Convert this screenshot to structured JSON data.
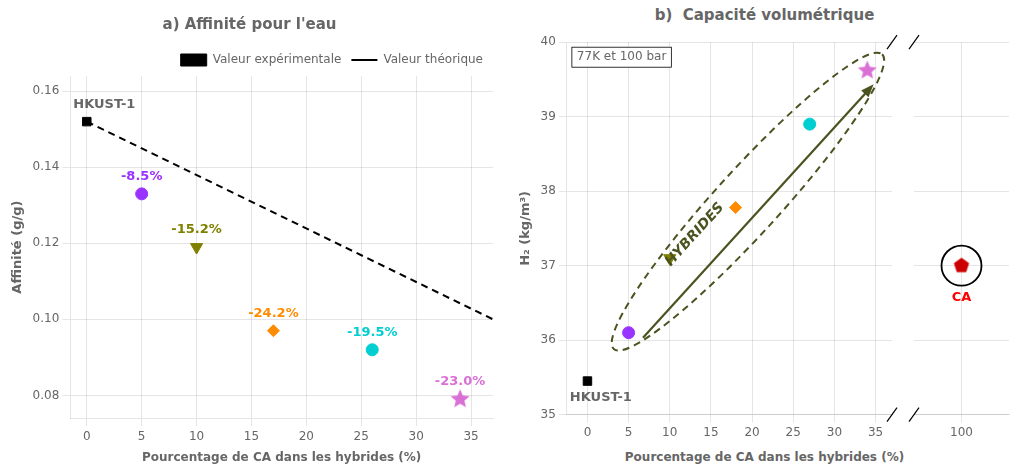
{
  "chart_data": [
    {
      "type": "scatter",
      "title": "a) Affinité pour l'eau",
      "xlabel": "Pourcentage de CA dans les hybrides (%)",
      "ylabel": "Affinité (g/g)",
      "xlim": [
        -1.5,
        37
      ],
      "xticks": [
        0,
        5,
        10,
        15,
        20,
        25,
        30,
        35
      ],
      "ylim": [
        0.074,
        0.164
      ],
      "yticks": [
        0.08,
        {
          "value": 0.1,
          "label": "0.10"
        },
        0.12,
        0.14,
        0.16
      ],
      "grid": true,
      "legend": "upper right",
      "series": [
        {
          "name": "Valeur théorique",
          "type": "line",
          "line_style": "dashed",
          "color": "#000000",
          "x": [
            0,
            37
          ],
          "values": [
            0.152,
            0.1
          ]
        },
        {
          "name": "Valeur expérimentale",
          "type": "scatter",
          "marker": "square",
          "color": "#000000",
          "x": [
            0
          ],
          "values": [
            0.152
          ]
        },
        {
          "type": "scatter",
          "marker": "circle",
          "color": "#9933FF",
          "x": [
            5
          ],
          "values": [
            0.133
          ]
        },
        {
          "type": "scatter",
          "marker": "triangle_down",
          "color": "#808000",
          "x": [
            10
          ],
          "values": [
            0.119
          ]
        },
        {
          "type": "scatter",
          "marker": "diamond",
          "color": "#FF8C00",
          "x": [
            17
          ],
          "values": [
            0.097
          ]
        },
        {
          "type": "scatter",
          "marker": "circle",
          "color": "#00CED1",
          "x": [
            26
          ],
          "values": [
            0.092
          ]
        },
        {
          "type": "scatter",
          "marker": "star",
          "color": "#DA70D6",
          "x": [
            34
          ],
          "values": [
            0.079
          ]
        }
      ],
      "annotations": [
        {
          "text": "HKUST-1",
          "x": 0,
          "y": 0.152
        },
        {
          "text": "-8.5%",
          "x": 5,
          "y": 0.133,
          "color": "#9933FF"
        },
        {
          "text": "-15.2%",
          "x": 10,
          "y": 0.119,
          "color": "#808000"
        },
        {
          "text": "-24.2%",
          "x": 17,
          "y": 0.097,
          "color": "#FF8C00"
        },
        {
          "text": "-19.5%",
          "x": 26,
          "y": 0.092,
          "color": "#00CED1"
        },
        {
          "text": "-23.0%",
          "x": 34,
          "y": 0.079,
          "color": "#DA70D6"
        }
      ]
    },
    {
      "type": "scatter",
      "title": "b)  Capacité volumétrique",
      "xlabel": "Pourcentage de CA dans les hybrides (%)",
      "ylabel": "H₂ (kg/m³)",
      "xlim": [
        -2.5,
        37
      ],
      "xticks": [
        0,
        5,
        10,
        15,
        20,
        25,
        30,
        35
      ],
      "ylim": [
        35.0,
        40.0
      ],
      "yticks": [
        35,
        36,
        37,
        38,
        39,
        40
      ],
      "grid": true,
      "series": [
        {
          "type": "scatter",
          "marker": "square",
          "color": "#000000",
          "x": [
            0
          ],
          "values": [
            35.45
          ]
        },
        {
          "type": "scatter",
          "marker": "circle",
          "color": "#9933FF",
          "x": [
            5
          ],
          "values": [
            36.1
          ]
        },
        {
          "type": "scatter",
          "marker": "triangle_down",
          "color": "#808000",
          "x": [
            10
          ],
          "values": [
            37.1
          ]
        },
        {
          "type": "scatter",
          "marker": "diamond",
          "color": "#FF8C00",
          "x": [
            18
          ],
          "values": [
            37.78
          ]
        },
        {
          "type": "scatter",
          "marker": "circle",
          "color": "#00CED1",
          "x": [
            27
          ],
          "values": [
            38.9
          ]
        },
        {
          "type": "scatter",
          "marker": "star",
          "color": "#DA70D6",
          "x": [
            34
          ],
          "values": [
            39.62
          ]
        }
      ],
      "annotations": [
        {
          "text": "77K et 100 bar"
        },
        {
          "text": "HKUST-1",
          "x": 0,
          "y": 35.45
        },
        {
          "text": "HYBRIDES",
          "color": "#4B5320"
        }
      ]
    },
    {
      "type": "scatter",
      "xlim": [
        93,
        107
      ],
      "xticks": [
        100
      ],
      "ylim": [
        35.0,
        40.0
      ],
      "yticks": [
        35,
        36,
        37,
        38,
        39,
        40
      ],
      "grid": true,
      "tick_labels": "x",
      "series": [
        {
          "type": "scatter",
          "marker": "pentagon",
          "color": "#CC0000",
          "x": [
            100
          ],
          "values": [
            37.0
          ]
        }
      ],
      "annotations": [
        {
          "text": "CA",
          "x": 100,
          "y": 37.0,
          "color": "red"
        }
      ]
    }
  ]
}
